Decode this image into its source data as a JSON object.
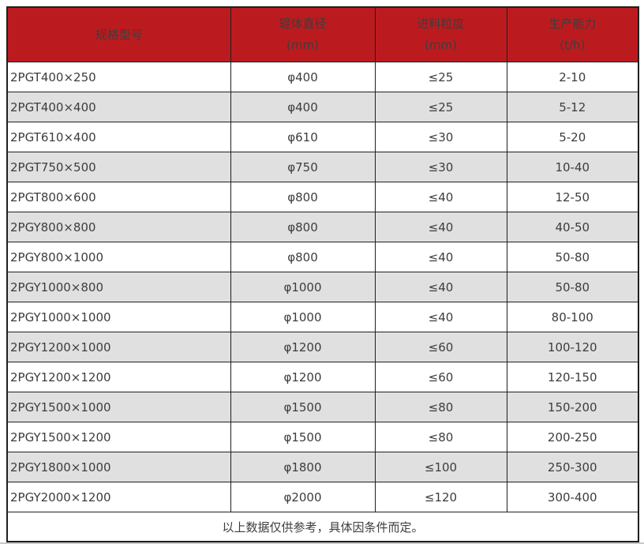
{
  "colors": {
    "header_bg": "#bb1b1f",
    "header_text": "#ffffff",
    "row_alt_bg": "#e0e0e0",
    "border": "#1f1f1f",
    "text": "#3d3d3d"
  },
  "table": {
    "columns": [
      {
        "title": "规格型号",
        "unit": ""
      },
      {
        "title": "辊体直径",
        "unit": "(mm)"
      },
      {
        "title": "进料粒度",
        "unit": "(mm)"
      },
      {
        "title": "生产能力",
        "unit": "(t/h)"
      }
    ],
    "rows": [
      [
        "2PGT400×250",
        "φ400",
        "≤25",
        "2-10"
      ],
      [
        "2PGT400×400",
        "φ400",
        "≤25",
        "5-12"
      ],
      [
        "2PGT610×400",
        "φ610",
        "≤30",
        "5-20"
      ],
      [
        "2PGT750×500",
        "φ750",
        "≤30",
        "10-40"
      ],
      [
        "2PGT800×600",
        "φ800",
        "≤40",
        "12-50"
      ],
      [
        "2PGY800×800",
        "φ800",
        "≤40",
        "40-50"
      ],
      [
        "2PGY800×1000",
        "φ800",
        "≤40",
        "50-80"
      ],
      [
        "2PGY1000×800",
        "φ1000",
        "≤40",
        "50-80"
      ],
      [
        "2PGY1000×1000",
        "φ1000",
        "≤40",
        "80-100"
      ],
      [
        "2PGY1200×1000",
        "φ1200",
        "≤60",
        "100-120"
      ],
      [
        "2PGY1200×1200",
        "φ1200",
        "≤60",
        "120-150"
      ],
      [
        "2PGY1500×1000",
        "φ1500",
        "≤80",
        "150-200"
      ],
      [
        "2PGY1500×1200",
        "φ1500",
        "≤80",
        "200-250"
      ],
      [
        "2PGY1800×1000",
        "φ1800",
        "≤100",
        "250-300"
      ],
      [
        "2PGY2000×1200",
        "φ2000",
        "≤120",
        "300-400"
      ]
    ],
    "footer_note": "以上数据仅供参考，具体因条件而定。"
  }
}
